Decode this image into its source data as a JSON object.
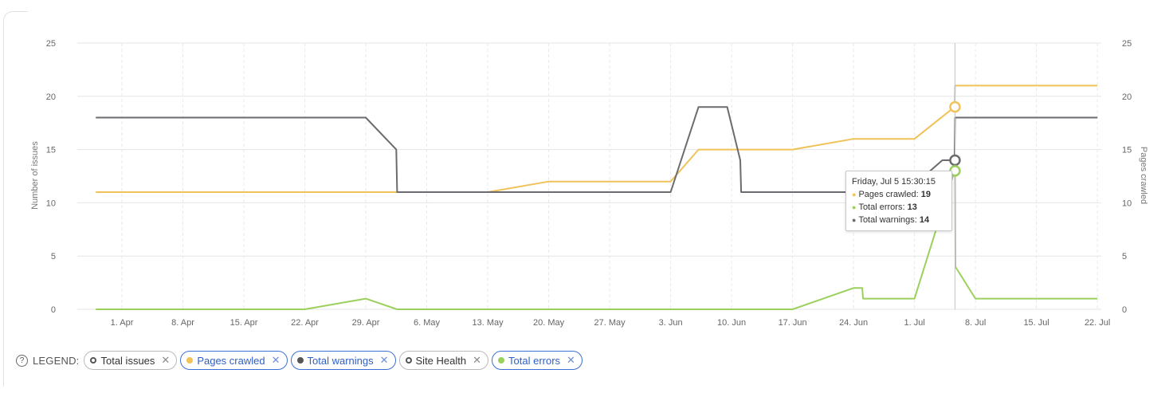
{
  "chart_data": {
    "type": "line",
    "ylabel_left": "Number of issues",
    "ylabel_right": "Pages crawled",
    "ylim_left": [
      0,
      25
    ],
    "ylim_right": [
      0,
      25
    ],
    "y_ticks_left": [
      "0",
      "5",
      "10",
      "15",
      "20",
      "25"
    ],
    "y_ticks_right": [
      "0",
      "5",
      "10",
      "15",
      "20",
      "25"
    ],
    "x_ticks": [
      {
        "label": "1. Apr",
        "day": 0
      },
      {
        "label": "8. Apr",
        "day": 7
      },
      {
        "label": "15. Apr",
        "day": 14
      },
      {
        "label": "22. Apr",
        "day": 21
      },
      {
        "label": "29. Apr",
        "day": 28
      },
      {
        "label": "6. May",
        "day": 35
      },
      {
        "label": "13. May",
        "day": 42
      },
      {
        "label": "20. May",
        "day": 49
      },
      {
        "label": "27. May",
        "day": 56
      },
      {
        "label": "3. Jun",
        "day": 63
      },
      {
        "label": "10. Jun",
        "day": 70
      },
      {
        "label": "17. Jun",
        "day": 77
      },
      {
        "label": "24. Jun",
        "day": 84
      },
      {
        "label": "1. Jul",
        "day": 91
      },
      {
        "label": "8. Jul",
        "day": 98
      },
      {
        "label": "15. Jul",
        "day": 105
      },
      {
        "label": "22. Jul",
        "day": 112
      }
    ],
    "x_range_days": [
      -3,
      112
    ],
    "grid": true,
    "crosshair_day": 95.65,
    "series": [
      {
        "name": "Pages crawled",
        "color": "#f0c259",
        "points": [
          [
            -3,
            11
          ],
          [
            42,
            11
          ],
          [
            49,
            12
          ],
          [
            63,
            12
          ],
          [
            66.2,
            15
          ],
          [
            77,
            15
          ],
          [
            84,
            16
          ],
          [
            91,
            16
          ],
          [
            95.6,
            19
          ],
          [
            95.65,
            21
          ],
          [
            112,
            21
          ]
        ]
      },
      {
        "name": "Total warnings",
        "color": "#6b6b70",
        "points": [
          [
            -3,
            18
          ],
          [
            28,
            18
          ],
          [
            31.5,
            15
          ],
          [
            31.6,
            11
          ],
          [
            63,
            11
          ],
          [
            66.2,
            19
          ],
          [
            69.5,
            19
          ],
          [
            71,
            14
          ],
          [
            71.1,
            11
          ],
          [
            90,
            11
          ],
          [
            94.2,
            14
          ],
          [
            95.6,
            14
          ],
          [
            95.65,
            18
          ],
          [
            112,
            18
          ]
        ]
      },
      {
        "name": "Total errors",
        "color": "#9bd05c",
        "points": [
          [
            -3,
            0
          ],
          [
            21,
            0
          ],
          [
            28,
            1
          ],
          [
            31.6,
            0
          ],
          [
            77,
            0
          ],
          [
            84,
            2
          ],
          [
            85,
            2
          ],
          [
            85.1,
            1
          ],
          [
            91,
            1
          ],
          [
            95.6,
            13
          ],
          [
            95.65,
            13
          ],
          [
            95.7,
            4
          ],
          [
            98,
            1
          ],
          [
            112,
            1
          ]
        ]
      }
    ],
    "markers": [
      {
        "series": "Pages crawled",
        "day": 95.65,
        "value": 19,
        "color": "#f0c259"
      },
      {
        "series": "Total warnings",
        "day": 95.65,
        "value": 14,
        "color": "#6b6b70"
      },
      {
        "series": "Total errors",
        "day": 95.65,
        "value": 13,
        "color": "#9bd05c"
      }
    ],
    "tooltip": {
      "date": "Friday, Jul 5 15:30:15",
      "rows": [
        {
          "label": "Pages crawled:",
          "value": "19",
          "color": "#f0c259"
        },
        {
          "label": "Total errors:",
          "value": "13",
          "color": "#9bd05c"
        },
        {
          "label": "Total warnings:",
          "value": "14",
          "color": "#6b6b70"
        }
      ]
    }
  },
  "legend": {
    "title": "LEGEND:",
    "help_icon": "question-circle-icon",
    "remove_glyph": "✕",
    "items": [
      {
        "label": "Total issues",
        "active": false,
        "marker": "hollow",
        "color": "#555555"
      },
      {
        "label": "Pages crawled",
        "active": true,
        "marker": "filled",
        "color": "#f0c259"
      },
      {
        "label": "Total warnings",
        "active": true,
        "marker": "filled",
        "color": "#555555"
      },
      {
        "label": "Site Health",
        "active": false,
        "marker": "hollow",
        "color": "#555555"
      },
      {
        "label": "Total errors",
        "active": true,
        "marker": "filled",
        "color": "#9bd05c"
      }
    ]
  }
}
